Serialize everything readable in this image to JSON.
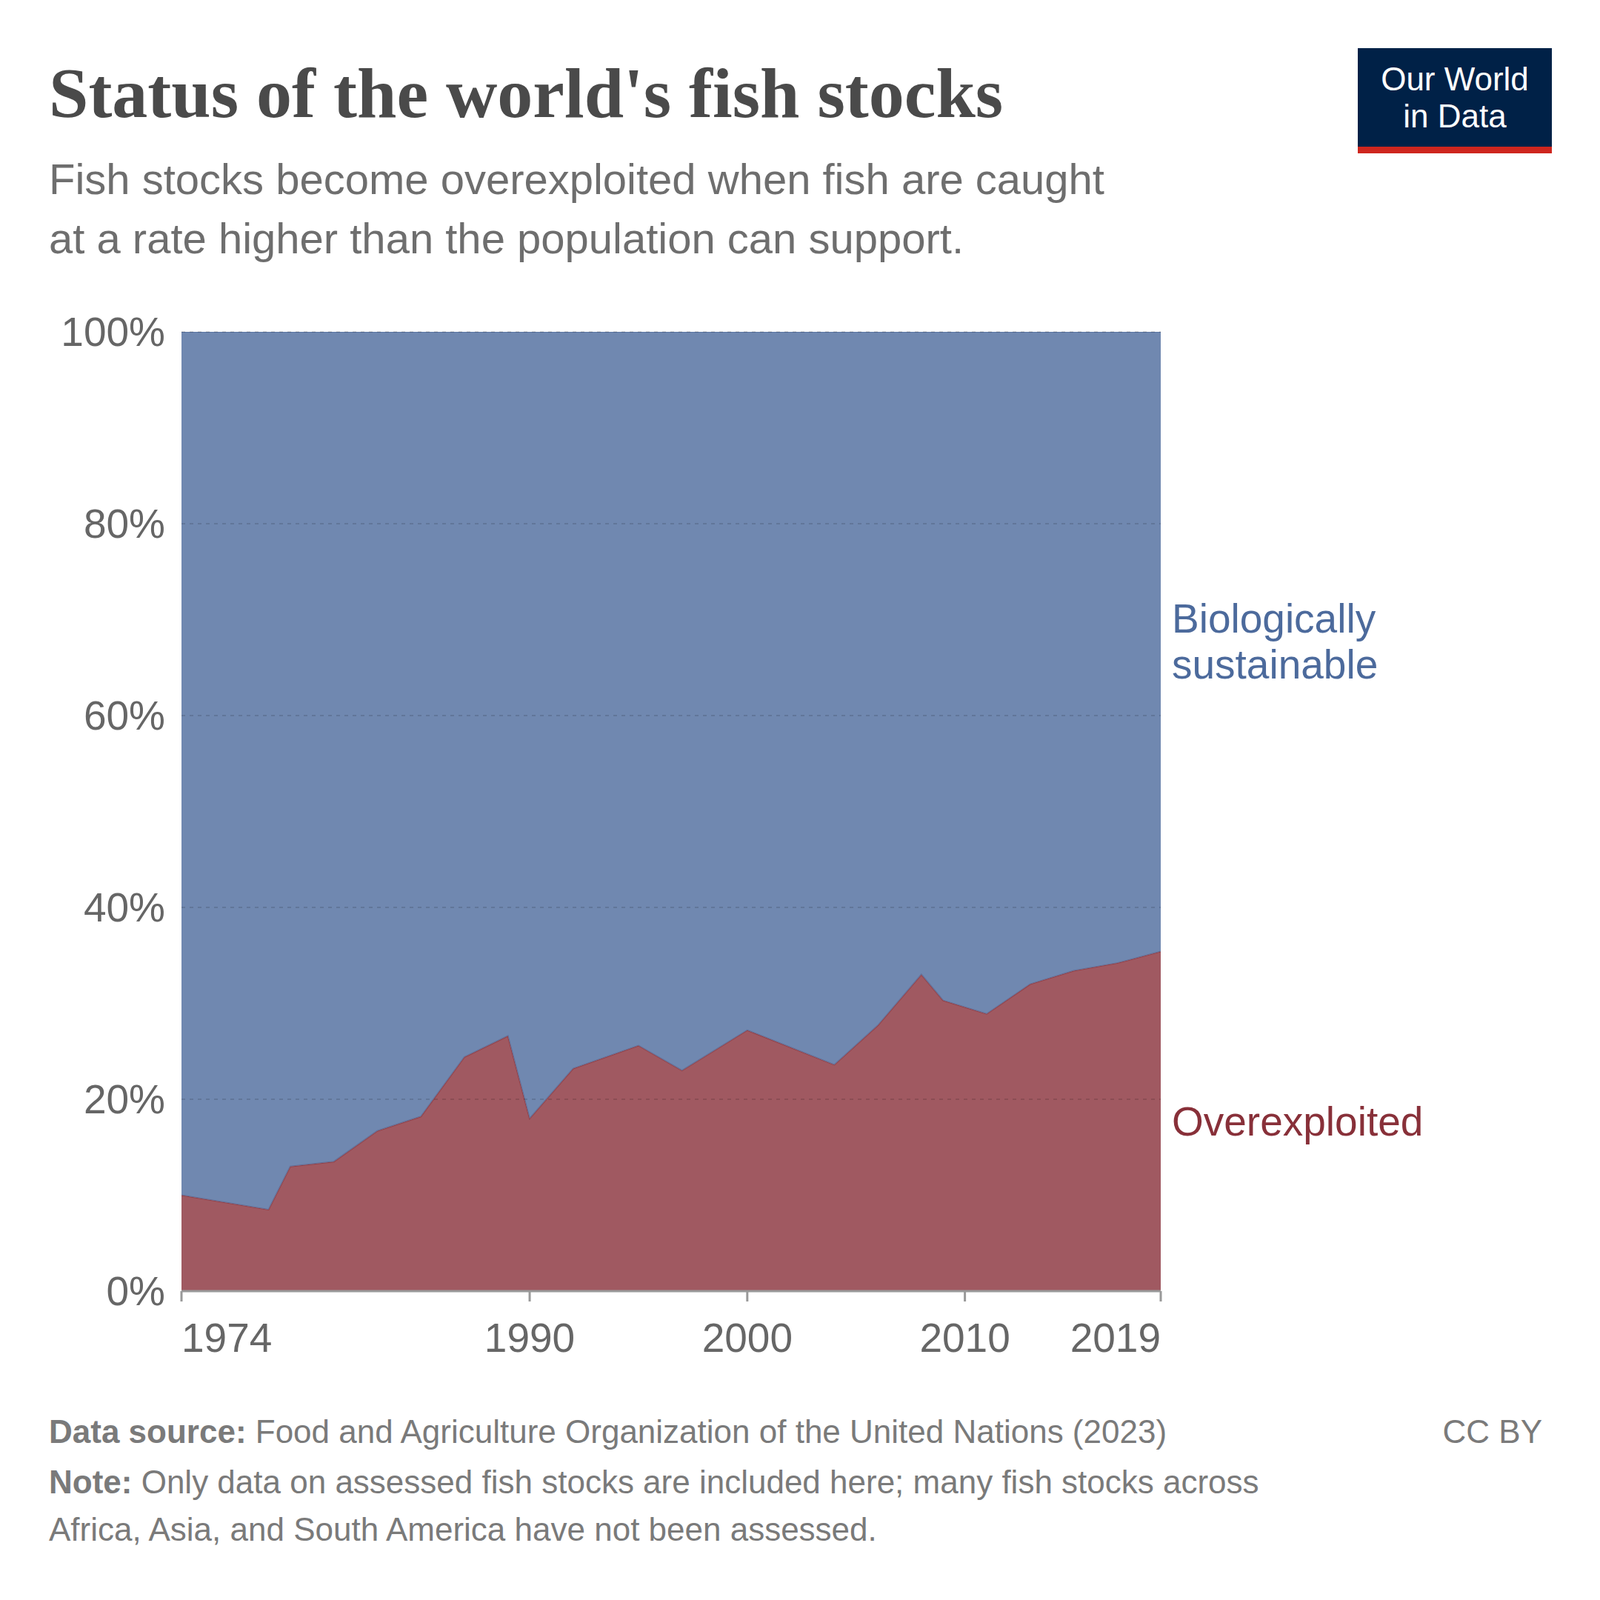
{
  "chart_data": {
    "type": "area",
    "stacked": true,
    "title": "Status of the world's fish stocks",
    "subtitle": [
      "Fish stocks become overexploited when fish are caught",
      "at a rate higher than the population can support."
    ],
    "logo": [
      "Our World",
      "in Data"
    ],
    "source_label": "Data source:",
    "source": "Food and Agriculture Organization of the United Nations (2023)",
    "license": "CC BY",
    "note_label": "Note:",
    "note": [
      "Only data on assessed fish stocks are included here; many fish stocks across",
      "Africa, Asia, and South America have not been assessed."
    ],
    "x": [
      1974,
      1978,
      1979,
      1981,
      1983,
      1985,
      1987,
      1989,
      1990,
      1992,
      1995,
      1997,
      2000,
      2004,
      2006,
      2008,
      2009,
      2011,
      2013,
      2015,
      2017,
      2019
    ],
    "series": [
      {
        "name": "Overexploited",
        "color": "#883039",
        "values": [
          10,
          8.5,
          13,
          13.5,
          16.7,
          18.2,
          24.4,
          26.6,
          18,
          23.2,
          25.6,
          23,
          27.2,
          23.6,
          27.7,
          33,
          30.3,
          28.9,
          32,
          33.4,
          34.2,
          35.4
        ]
      },
      {
        "name": "Biologically sustainable",
        "color": "#4c6a9c",
        "values": [
          90,
          91.5,
          87,
          86.5,
          83.3,
          81.8,
          75.6,
          73.4,
          82,
          76.8,
          74.4,
          77,
          72.8,
          76.4,
          72.3,
          67,
          69.7,
          71.1,
          68,
          66.6,
          65.8,
          64.6
        ]
      }
    ],
    "xlim": [
      1974,
      2019
    ],
    "xticks": [
      1974,
      1990,
      2000,
      2010,
      2019
    ],
    "ylim": [
      0,
      100
    ],
    "yticks": [
      {
        "value": 0,
        "label": "0%"
      },
      {
        "value": 20,
        "label": "20%"
      },
      {
        "value": 40,
        "label": "40%"
      },
      {
        "value": 60,
        "label": "60%"
      },
      {
        "value": 80,
        "label": "80%"
      },
      {
        "value": 100,
        "label": "100%"
      }
    ],
    "grid": true
  }
}
